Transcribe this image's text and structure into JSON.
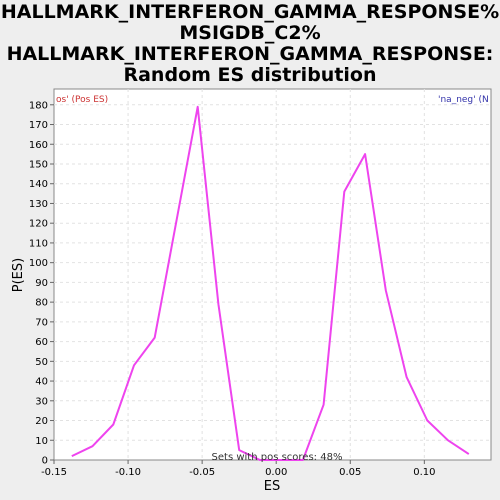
{
  "chart_data": {
    "type": "line",
    "title_lines": [
      "HALLMARK_INTERFERON_GAMMA_RESPONSE%",
      "MSIGDB_C2%",
      "HALLMARK_INTERFERON_GAMMA_RESPONSE:",
      "Random ES distribution"
    ],
    "xlabel": "ES",
    "ylabel": "P(ES)",
    "xlim": [
      -0.15,
      0.145
    ],
    "ylim": [
      0,
      188
    ],
    "xticks": [
      -0.15,
      -0.1,
      -0.05,
      0.0,
      0.05,
      0.1
    ],
    "xtick_labels": [
      "-0.15",
      "-0.10",
      "-0.05",
      "0.00",
      "0.05",
      "0.10"
    ],
    "yticks": [
      0,
      10,
      20,
      30,
      40,
      50,
      60,
      70,
      80,
      90,
      100,
      110,
      120,
      130,
      140,
      150,
      160,
      170,
      180
    ],
    "grid": true,
    "series": [
      {
        "color": "#ee44ee",
        "x": [
          -0.138,
          -0.124,
          -0.11,
          -0.096,
          -0.082,
          -0.053,
          -0.039,
          -0.025,
          -0.011,
          0.004,
          0.018,
          0.032,
          0.046,
          0.06,
          0.074,
          0.088,
          0.102,
          0.116,
          0.13
        ],
        "y": [
          2,
          7,
          18,
          48,
          62,
          179,
          79,
          5,
          0,
          0,
          0,
          28,
          136,
          155,
          86,
          42,
          20,
          10,
          3
        ]
      }
    ],
    "corner_left": {
      "text": "os' (Pos ES)",
      "color": "#cc3333"
    },
    "corner_right": {
      "text": "'na_neg' (N",
      "color": "#3333aa"
    },
    "note": "Sets with pos scores: 48%"
  }
}
